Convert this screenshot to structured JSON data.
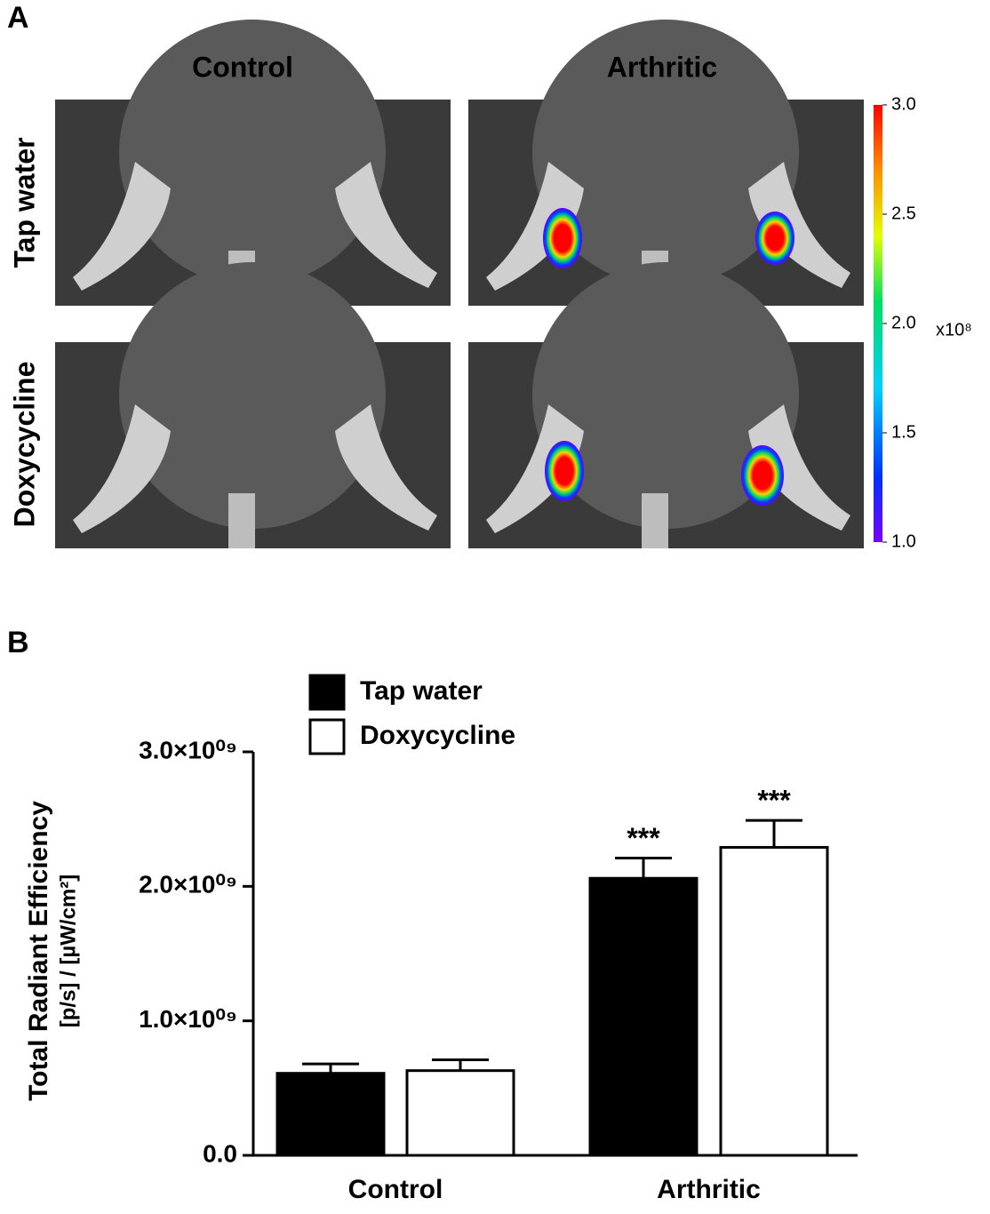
{
  "panel_a": {
    "label": "A",
    "columns": [
      "Control",
      "Arthritic"
    ],
    "rows": [
      "Tap water",
      "Doxycycline"
    ],
    "colorbar": {
      "lim": [
        1,
        3
      ],
      "ticks": [
        {
          "value": 3,
          "label": "3.0"
        },
        {
          "value": 2.5,
          "label": "2.5"
        },
        {
          "value": 2,
          "label": "2.0"
        },
        {
          "value": 1.5,
          "label": "1.5"
        },
        {
          "value": 1,
          "label": "1.0"
        }
      ],
      "unit": "x10⁸"
    }
  },
  "chart_data": {
    "type": "bar",
    "label": "B",
    "ylabel": "Total Radiant Efficiency",
    "ylabel2": "[p/s] / [µW/cm²]",
    "categories": [
      "Control",
      "Arthritic"
    ],
    "series": [
      {
        "name": "Tap water",
        "color": "#000000",
        "values": [
          610000000,
          2060000000
        ],
        "errors": [
          70000000,
          150000000
        ],
        "labels": [
          null,
          "***"
        ]
      },
      {
        "name": "Doxycycline",
        "color": "#ffffff",
        "values": [
          630000000,
          2290000000
        ],
        "errors": [
          80000000,
          200000000
        ],
        "labels": [
          null,
          "***"
        ]
      }
    ],
    "ylim": [
      0,
      3000000000
    ],
    "yticks": [
      {
        "value": 0,
        "label": "0.0"
      },
      {
        "value": 1000000000,
        "label": "1.0×10⁰⁹"
      },
      {
        "value": 2000000000,
        "label": "2.0×10⁰⁹"
      },
      {
        "value": 3000000000,
        "label": "3.0×10⁰⁹"
      }
    ]
  }
}
